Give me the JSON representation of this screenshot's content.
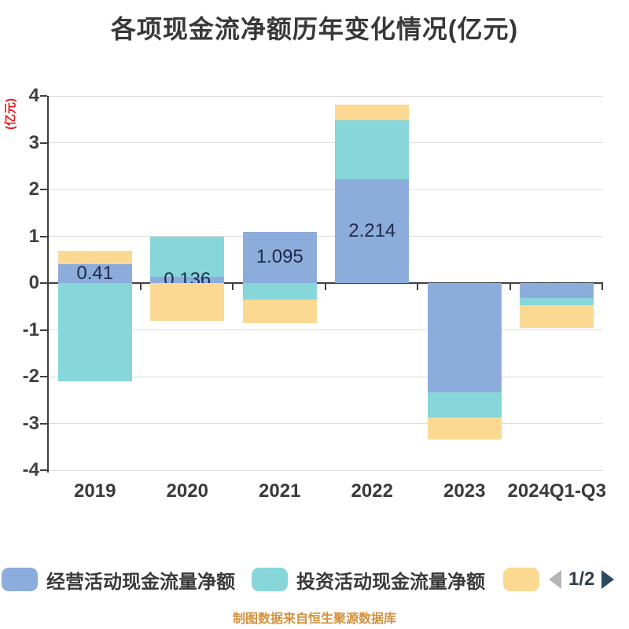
{
  "title": "各项现金流净额历年变化情况(亿元)",
  "footer": "制图数据来自恒生聚源数据库",
  "pagination": {
    "page_label": "1/2"
  },
  "colors": {
    "operating": "#8CACDC",
    "investing": "#87D6D9",
    "financing": "#FBD993",
    "axis": "#404040",
    "gridline": "#DCDCDC",
    "bar_label": "#1E2A47",
    "y_axis_label_red": "#E02020",
    "footer_orange": "#D2913C",
    "pager_prev_gray": "#B5B5B5",
    "pager_next_navy": "#2C4A63"
  },
  "chart_data": {
    "type": "bar",
    "stacked": true,
    "title": "各项现金流净额历年变化情况(亿元)",
    "ylabel": "(亿元)",
    "xlabel": "",
    "categories": [
      "2019",
      "2020",
      "2021",
      "2022",
      "2023",
      "2024Q1-Q3"
    ],
    "series": [
      {
        "name": "经营活动现金流量净额",
        "key": "operating",
        "color": "#8CACDC",
        "values": [
          0.41,
          0.136,
          1.095,
          2.214,
          -2.328,
          -0.319
        ],
        "data_labels": [
          "0.41",
          "0.136",
          "1.095",
          "2.214",
          "-2.328",
          "-0.319"
        ]
      },
      {
        "name": "投资活动现金流量净额",
        "key": "investing",
        "color": "#87D6D9",
        "values": [
          -2.1,
          0.864,
          -0.36,
          1.27,
          -0.55,
          -0.15
        ]
      },
      {
        "name": "",
        "key": "financing",
        "color": "#FBD993",
        "values": [
          0.285,
          -0.81,
          -0.5,
          0.33,
          -0.46,
          -0.49
        ]
      }
    ],
    "ylim": [
      -4,
      4
    ],
    "yticks": [
      4,
      3,
      2,
      1,
      0,
      -1,
      -2,
      -3,
      -4
    ],
    "grid": true,
    "legend_position": "bottom"
  }
}
